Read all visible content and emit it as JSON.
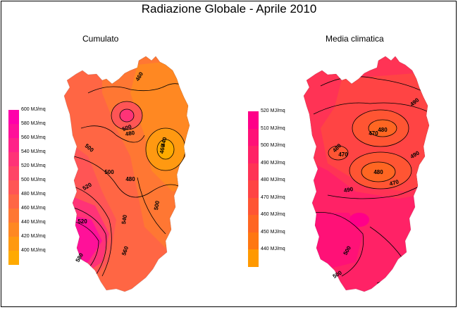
{
  "title": "Radiazione Globale - Aprile 2010",
  "maps": [
    {
      "subtitle": "Cumulato",
      "legend": [
        {
          "label": "600 MJ/mq",
          "color": "#ff00aa"
        },
        {
          "label": "580 MJ/mq",
          "color": "#ff1199"
        },
        {
          "label": "560 MJ/mq",
          "color": "#ff2288"
        },
        {
          "label": "540 MJ/mq",
          "color": "#ff3377"
        },
        {
          "label": "520 MJ/mq",
          "color": "#ff4466"
        },
        {
          "label": "500 MJ/mq",
          "color": "#ff5555"
        },
        {
          "label": "480 MJ/mq",
          "color": "#ff6644"
        },
        {
          "label": "460 MJ/mq",
          "color": "#ff7733"
        },
        {
          "label": "440 MJ/mq",
          "color": "#ff8822"
        },
        {
          "label": "420 MJ/mq",
          "color": "#ff9911"
        },
        {
          "label": "400 MJ/mq",
          "color": "#ffaa00"
        }
      ],
      "contour_labels": [
        "460",
        "500",
        "480",
        "500",
        "520",
        "460",
        "480",
        "500",
        "520",
        "540",
        "560",
        "580",
        "500",
        "440"
      ]
    },
    {
      "subtitle": "Media climatica",
      "legend": [
        {
          "label": "520 MJ/mq",
          "color": "#ff0088"
        },
        {
          "label": "510 MJ/mq",
          "color": "#ff1177"
        },
        {
          "label": "500 MJ/mq",
          "color": "#ff2266"
        },
        {
          "label": "490 MJ/mq",
          "color": "#ff3355"
        },
        {
          "label": "480 MJ/mq",
          "color": "#ff4444"
        },
        {
          "label": "470 MJ/mq",
          "color": "#ff5533"
        },
        {
          "label": "460 MJ/mq",
          "color": "#ff6622"
        },
        {
          "label": "450 MJ/mq",
          "color": "#ff7711"
        },
        {
          "label": "440 MJ/mq",
          "color": "#ff9900"
        }
      ],
      "contour_labels": [
        "490",
        "480",
        "470",
        "490",
        "480",
        "470",
        "490",
        "480",
        "470",
        "500",
        "500"
      ]
    }
  ]
}
